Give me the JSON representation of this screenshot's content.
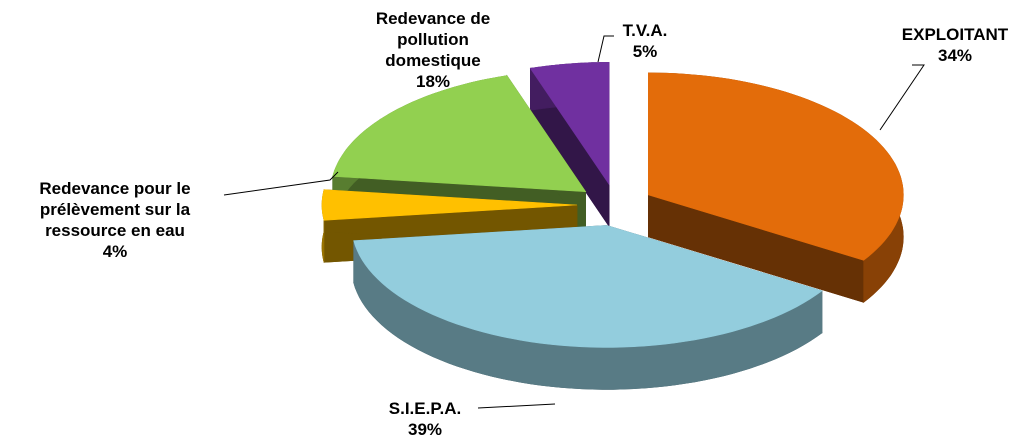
{
  "chart_data": {
    "type": "pie3d",
    "categories": [
      "EXPLOITANT",
      "S.I.E.P.A.",
      "Redevance pour le prélèvement sur la ressource en eau",
      "Redevance de pollution domestique",
      "T.V.A."
    ],
    "values": [
      34,
      39,
      4,
      18,
      5
    ],
    "value_labels": [
      "34%",
      "39%",
      "4%",
      "18%",
      "5%"
    ],
    "colors": [
      "#e36c0a",
      "#93cddd",
      "#ffc000",
      "#92d050",
      "#7030a0"
    ]
  }
}
